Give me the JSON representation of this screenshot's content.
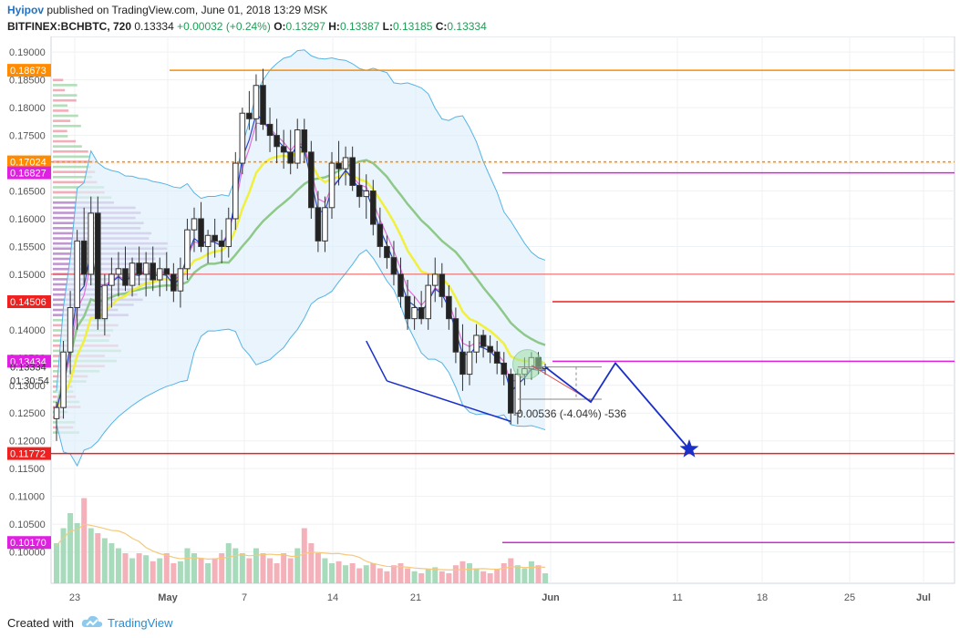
{
  "header": {
    "author": "Hyipov",
    "published": "published on TradingView.com, June 01, 2018 13:29 MSK",
    "symbol": "BITFINEX:BCHBTC, 720",
    "last": "0.13334",
    "change": "+0.00032 (+0.24%)",
    "o_label": "O:",
    "o_value": "0.13297",
    "h_label": "H:",
    "h_value": "0.13387",
    "l_label": "L:",
    "l_value": "0.13185",
    "c_label": "C:",
    "c_value": "0.13334"
  },
  "footer": {
    "created_with": "Created with",
    "brand": "TradingView"
  },
  "chart_data": {
    "type": "candlestick",
    "title": "",
    "ylim": [
      0.0955,
      0.192
    ],
    "y_ticks": [
      "0.19000",
      "0.18500",
      "0.18000",
      "0.17500",
      "0.17000",
      "0.16500",
      "0.16000",
      "0.15500",
      "0.15000",
      "0.14500",
      "0.14000",
      "0.13500",
      "0.13000",
      "0.12500",
      "0.12000",
      "0.11500",
      "0.11000",
      "0.10500",
      "0.10000"
    ],
    "x_ticks": [
      "23",
      "May",
      "7",
      "14",
      "21",
      "Jun",
      "11",
      "18",
      "25",
      "Jul"
    ],
    "price_tags": [
      {
        "label": "0.18673",
        "value": 0.18673,
        "color": "#ff8c00"
      },
      {
        "label": "0.17024",
        "value": 0.17024,
        "color": "#ff8c00"
      },
      {
        "label": "0.16827",
        "value": 0.16827,
        "color": "#e020e0"
      },
      {
        "label": "0.14506",
        "value": 0.14506,
        "color": "#ee2020"
      },
      {
        "label": "0.13434",
        "value": 0.13434,
        "color": "#e020e0"
      },
      {
        "label": "0.11772",
        "value": 0.11772,
        "color": "#ee2020"
      },
      {
        "label": "0.10170",
        "value": 0.1017,
        "color": "#e020e0"
      }
    ],
    "current_price": "0.13334",
    "countdown": "01:30:54",
    "measure_label": "-0.00536 (-4.04%) -536",
    "candles": [
      [
        0.124,
        0.127,
        0.12,
        0.126
      ],
      [
        0.126,
        0.138,
        0.124,
        0.136
      ],
      [
        0.136,
        0.147,
        0.132,
        0.144
      ],
      [
        0.144,
        0.158,
        0.14,
        0.156
      ],
      [
        0.156,
        0.162,
        0.148,
        0.15
      ],
      [
        0.15,
        0.164,
        0.148,
        0.161
      ],
      [
        0.161,
        0.164,
        0.14,
        0.142
      ],
      [
        0.142,
        0.15,
        0.139,
        0.148
      ],
      [
        0.148,
        0.153,
        0.144,
        0.15
      ],
      [
        0.15,
        0.154,
        0.146,
        0.151
      ],
      [
        0.151,
        0.155,
        0.147,
        0.148
      ],
      [
        0.148,
        0.153,
        0.146,
        0.152
      ],
      [
        0.152,
        0.155,
        0.148,
        0.15
      ],
      [
        0.15,
        0.154,
        0.146,
        0.152
      ],
      [
        0.152,
        0.155,
        0.147,
        0.149
      ],
      [
        0.149,
        0.153,
        0.146,
        0.151
      ],
      [
        0.151,
        0.154,
        0.147,
        0.15
      ],
      [
        0.15,
        0.152,
        0.145,
        0.147
      ],
      [
        0.147,
        0.153,
        0.144,
        0.151
      ],
      [
        0.151,
        0.16,
        0.149,
        0.158
      ],
      [
        0.158,
        0.162,
        0.154,
        0.16
      ],
      [
        0.16,
        0.163,
        0.154,
        0.155
      ],
      [
        0.155,
        0.158,
        0.152,
        0.157
      ],
      [
        0.157,
        0.16,
        0.153,
        0.156
      ],
      [
        0.156,
        0.158,
        0.152,
        0.155
      ],
      [
        0.155,
        0.162,
        0.153,
        0.16
      ],
      [
        0.16,
        0.172,
        0.158,
        0.17
      ],
      [
        0.17,
        0.18,
        0.168,
        0.179
      ],
      [
        0.179,
        0.183,
        0.176,
        0.178
      ],
      [
        0.178,
        0.186,
        0.174,
        0.184
      ],
      [
        0.184,
        0.187,
        0.176,
        0.177
      ],
      [
        0.177,
        0.18,
        0.172,
        0.175
      ],
      [
        0.175,
        0.178,
        0.17,
        0.173
      ],
      [
        0.173,
        0.176,
        0.169,
        0.172
      ],
      [
        0.172,
        0.176,
        0.168,
        0.17
      ],
      [
        0.17,
        0.178,
        0.169,
        0.176
      ],
      [
        0.176,
        0.178,
        0.17,
        0.172
      ],
      [
        0.172,
        0.174,
        0.16,
        0.162
      ],
      [
        0.162,
        0.165,
        0.154,
        0.156
      ],
      [
        0.156,
        0.164,
        0.154,
        0.162
      ],
      [
        0.162,
        0.172,
        0.16,
        0.17
      ],
      [
        0.17,
        0.174,
        0.166,
        0.169
      ],
      [
        0.169,
        0.173,
        0.166,
        0.171
      ],
      [
        0.171,
        0.173,
        0.165,
        0.166
      ],
      [
        0.166,
        0.17,
        0.162,
        0.164
      ],
      [
        0.164,
        0.168,
        0.16,
        0.165
      ],
      [
        0.165,
        0.167,
        0.157,
        0.159
      ],
      [
        0.159,
        0.162,
        0.153,
        0.155
      ],
      [
        0.155,
        0.157,
        0.151,
        0.153
      ],
      [
        0.153,
        0.156,
        0.148,
        0.15
      ],
      [
        0.15,
        0.153,
        0.144,
        0.146
      ],
      [
        0.146,
        0.149,
        0.14,
        0.142
      ],
      [
        0.142,
        0.146,
        0.14,
        0.144
      ],
      [
        0.144,
        0.147,
        0.141,
        0.142
      ],
      [
        0.142,
        0.15,
        0.14,
        0.148
      ],
      [
        0.148,
        0.153,
        0.145,
        0.15
      ],
      [
        0.15,
        0.152,
        0.144,
        0.146
      ],
      [
        0.146,
        0.148,
        0.14,
        0.142
      ],
      [
        0.142,
        0.144,
        0.134,
        0.136
      ],
      [
        0.136,
        0.141,
        0.129,
        0.132
      ],
      [
        0.132,
        0.138,
        0.13,
        0.136
      ],
      [
        0.136,
        0.141,
        0.134,
        0.139
      ],
      [
        0.139,
        0.14,
        0.135,
        0.137
      ],
      [
        0.137,
        0.139,
        0.134,
        0.136
      ],
      [
        0.136,
        0.138,
        0.132,
        0.134
      ],
      [
        0.134,
        0.136,
        0.13,
        0.132
      ],
      [
        0.132,
        0.133,
        0.123,
        0.125
      ],
      [
        0.125,
        0.133,
        0.123,
        0.132
      ],
      [
        0.132,
        0.135,
        0.13,
        0.133
      ],
      [
        0.133,
        0.136,
        0.131,
        0.135
      ],
      [
        0.135,
        0.136,
        0.132,
        0.133
      ],
      [
        0.133,
        0.1339,
        0.1319,
        0.1333
      ]
    ],
    "volumes": [
      0.4,
      0.55,
      0.7,
      0.6,
      0.85,
      0.55,
      0.5,
      0.45,
      0.4,
      0.35,
      0.3,
      0.25,
      0.3,
      0.28,
      0.22,
      0.25,
      0.3,
      0.2,
      0.22,
      0.35,
      0.3,
      0.25,
      0.2,
      0.25,
      0.3,
      0.4,
      0.35,
      0.3,
      0.25,
      0.35,
      0.3,
      0.25,
      0.2,
      0.3,
      0.25,
      0.35,
      0.55,
      0.4,
      0.3,
      0.25,
      0.2,
      0.22,
      0.18,
      0.2,
      0.15,
      0.18,
      0.2,
      0.15,
      0.12,
      0.18,
      0.2,
      0.15,
      0.12,
      0.1,
      0.14,
      0.16,
      0.12,
      0.1,
      0.18,
      0.22,
      0.2,
      0.15,
      0.12,
      0.1,
      0.14,
      0.2,
      0.25,
      0.18,
      0.15,
      0.22,
      0.18,
      0.1
    ],
    "projection": [
      [
        "2018-06-03",
        0.127
      ],
      [
        "2018-06-06",
        0.134
      ],
      [
        "2018-06-12",
        0.1185
      ]
    ],
    "target": "star"
  }
}
